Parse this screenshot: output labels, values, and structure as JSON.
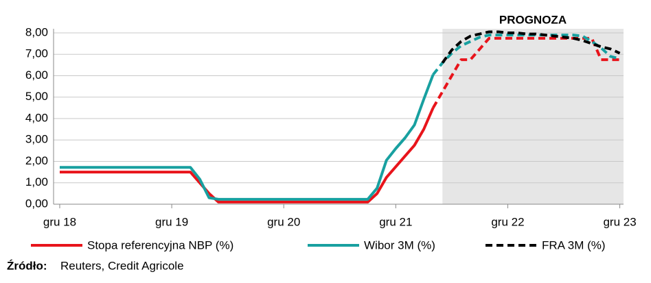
{
  "chart_data": {
    "type": "line",
    "annotation": "PROGNOZA",
    "shade_start": 41,
    "x": [
      0,
      1,
      2,
      3,
      4,
      5,
      6,
      7,
      8,
      9,
      10,
      11,
      12,
      13,
      14,
      15,
      16,
      17,
      18,
      19,
      20,
      21,
      22,
      23,
      24,
      25,
      26,
      27,
      28,
      29,
      30,
      31,
      32,
      33,
      34,
      35,
      36,
      37,
      38,
      39,
      40,
      41,
      42,
      43,
      44,
      45,
      46,
      47,
      48,
      49,
      50,
      51,
      52,
      53,
      54,
      55,
      56,
      57,
      58,
      59,
      60
    ],
    "xlim": [
      -0.66,
      60.4
    ],
    "xticks": [
      {
        "value": 0,
        "label": "gru 18"
      },
      {
        "value": 12,
        "label": "gru 19"
      },
      {
        "value": 24,
        "label": "gru 20"
      },
      {
        "value": 36,
        "label": "gru 21"
      },
      {
        "value": 48,
        "label": "gru 22"
      },
      {
        "value": 60,
        "label": "gru 23"
      }
    ],
    "ylim": [
      0,
      8
    ],
    "yticks": [
      {
        "value": 0,
        "label": "0,00"
      },
      {
        "value": 1,
        "label": "1,00"
      },
      {
        "value": 2,
        "label": "2,00"
      },
      {
        "value": 3,
        "label": "3,00"
      },
      {
        "value": 4,
        "label": "4,00"
      },
      {
        "value": 5,
        "label": "5,00"
      },
      {
        "value": 6,
        "label": "6,00"
      },
      {
        "value": 7,
        "label": "7,00"
      },
      {
        "value": 8,
        "label": "8,00"
      }
    ],
    "grid": true,
    "series": [
      {
        "name": "Stopa referencyjna NBP (%)",
        "color": "#e8141b",
        "values": [
          1.5,
          1.5,
          1.5,
          1.5,
          1.5,
          1.5,
          1.5,
          1.5,
          1.5,
          1.5,
          1.5,
          1.5,
          1.5,
          1.5,
          1.5,
          1.0,
          0.5,
          0.1,
          0.1,
          0.1,
          0.1,
          0.1,
          0.1,
          0.1,
          0.1,
          0.1,
          0.1,
          0.1,
          0.1,
          0.1,
          0.1,
          0.1,
          0.1,
          0.1,
          0.5,
          1.25,
          1.75,
          2.25,
          2.75,
          3.5,
          4.5,
          5.25,
          6.0,
          6.75,
          6.75,
          7.25,
          7.75,
          7.75,
          7.75,
          7.75,
          7.75,
          7.75,
          7.75,
          7.75,
          7.75,
          7.75,
          7.75,
          7.75,
          6.75,
          6.75,
          6.75
        ]
      },
      {
        "name": "Wibor 3M (%)",
        "color": "#18a0a0",
        "values": [
          1.72,
          1.72,
          1.72,
          1.72,
          1.72,
          1.72,
          1.72,
          1.72,
          1.72,
          1.72,
          1.72,
          1.72,
          1.72,
          1.72,
          1.72,
          1.17,
          0.3,
          0.23,
          0.23,
          0.23,
          0.23,
          0.23,
          0.23,
          0.23,
          0.23,
          0.23,
          0.23,
          0.23,
          0.23,
          0.23,
          0.23,
          0.23,
          0.23,
          0.23,
          0.75,
          2.05,
          2.6,
          3.1,
          3.7,
          4.9,
          6.05,
          6.6,
          7.05,
          7.4,
          7.6,
          7.8,
          7.9,
          7.9,
          7.9,
          7.9,
          7.9,
          7.9,
          7.9,
          7.9,
          7.9,
          7.9,
          7.85,
          7.6,
          7.3,
          6.9,
          6.8
        ]
      },
      {
        "name": "FRA 3M (%)",
        "color": "#000000",
        "values": [
          null,
          null,
          null,
          null,
          null,
          null,
          null,
          null,
          null,
          null,
          null,
          null,
          null,
          null,
          null,
          null,
          null,
          null,
          null,
          null,
          null,
          null,
          null,
          null,
          null,
          null,
          null,
          null,
          null,
          null,
          null,
          null,
          null,
          null,
          null,
          null,
          null,
          null,
          null,
          null,
          null,
          6.6,
          7.2,
          7.6,
          7.85,
          7.95,
          8.05,
          8.05,
          8.0,
          8.0,
          7.95,
          7.95,
          7.9,
          7.85,
          7.8,
          7.75,
          7.65,
          7.5,
          7.35,
          7.25,
          7.05
        ]
      }
    ],
    "source_label": "Źródło:",
    "source": "Reuters, Credit Agricole"
  }
}
